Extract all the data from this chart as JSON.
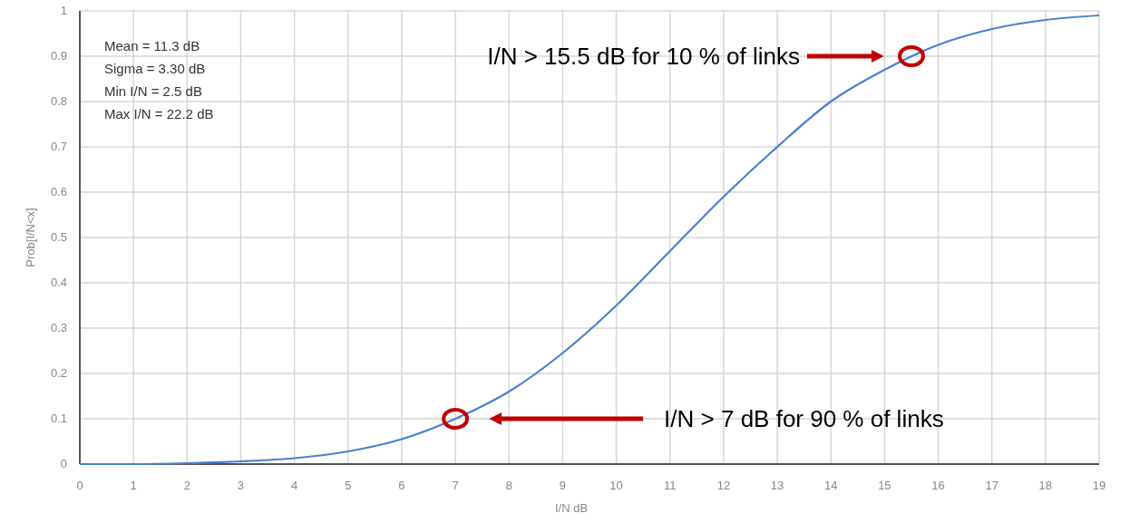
{
  "chart_data": {
    "type": "line",
    "xlabel": "I/N dB",
    "ylabel": "Prob[I/N<x]",
    "x": [
      0,
      1,
      2,
      3,
      4,
      5,
      6,
      7,
      8,
      9,
      10,
      11,
      12,
      13,
      14,
      15,
      16,
      17,
      18,
      19
    ],
    "series": [
      {
        "color": "#4a7fd4",
        "values": [
          0,
          0,
          0.002,
          0.006,
          0.013,
          0.028,
          0.055,
          0.1,
          0.16,
          0.245,
          0.35,
          0.47,
          0.59,
          0.7,
          0.8,
          0.87,
          0.925,
          0.96,
          0.98,
          0.99
        ]
      },
      {
        "type": "scatter",
        "color": "#c00000",
        "x": [
          15.5,
          7
        ],
        "values": [
          0.9,
          0.1
        ],
        "marker": "circle"
      }
    ],
    "xlim": [
      0,
      19
    ],
    "ylim": [
      0,
      1
    ],
    "xticks": [
      0,
      1,
      2,
      3,
      4,
      5,
      6,
      7,
      8,
      9,
      10,
      11,
      12,
      13,
      14,
      15,
      16,
      17,
      18,
      19
    ],
    "yticks": [
      0,
      0.1,
      0.2,
      0.3,
      0.4,
      0.5,
      0.6,
      0.7,
      0.8,
      0.9,
      1
    ],
    "grid": true,
    "marker": "none",
    "line_style": "solid",
    "annotations": [
      "Mean = 11.3 dB",
      "Sigma = 3.30 dB",
      "Min I/N = 2.5 dB",
      "Max I/N = 22.2 dB",
      "I/N > 15.5 dB for 10 % of links",
      "I/N > 7 dB for 90 % of links"
    ]
  }
}
